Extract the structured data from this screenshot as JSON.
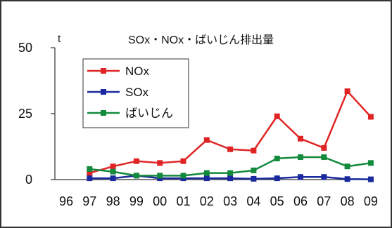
{
  "chart_data": {
    "type": "line",
    "title": "SOx・NOx・ばいじん排出量",
    "ylabel": "t",
    "ylim": [
      0,
      50
    ],
    "yticks": [
      "0",
      "25",
      "50"
    ],
    "categories": [
      "96",
      "97",
      "98",
      "99",
      "00",
      "01",
      "02",
      "03",
      "04",
      "05",
      "06",
      "07",
      "08",
      "09"
    ],
    "legend_position": "top-left",
    "grid": false,
    "series": [
      {
        "name": "NOx",
        "color": "#e02424",
        "values": [
          null,
          2.5,
          5,
          7,
          6.3,
          7,
          15,
          11.5,
          11,
          24,
          15.5,
          12,
          33.5,
          23.8
        ]
      },
      {
        "name": "SOx",
        "color": "#1a2a9e",
        "values": [
          null,
          0.5,
          0.5,
          1.5,
          0.5,
          0.5,
          0.5,
          0.5,
          0.3,
          0.5,
          1,
          1,
          0.2,
          0.1
        ]
      },
      {
        "name": "ばいじん",
        "color": "#138a3c",
        "values": [
          null,
          4,
          3,
          1.5,
          1.5,
          1.5,
          2.5,
          2.5,
          3.5,
          8,
          8.5,
          8.5,
          5,
          6.3
        ]
      }
    ]
  }
}
